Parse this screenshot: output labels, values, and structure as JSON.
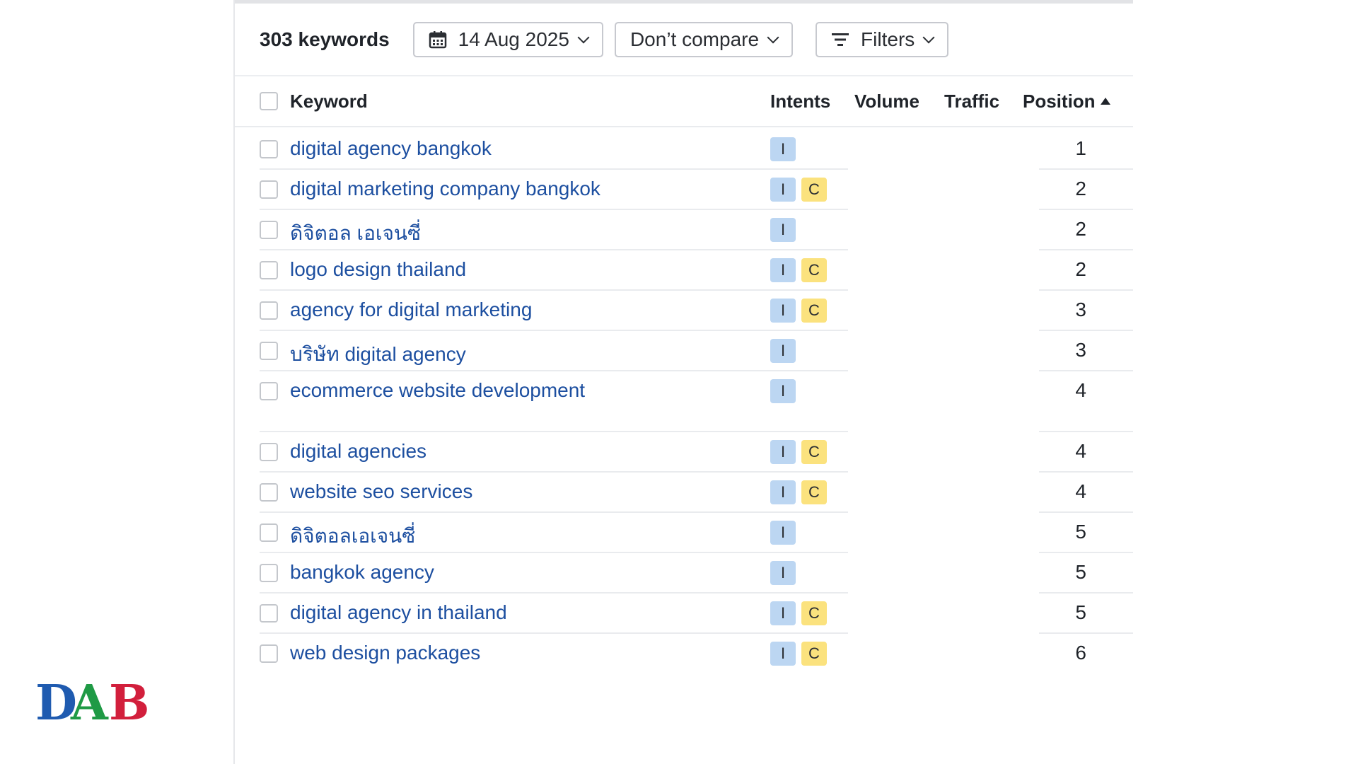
{
  "toolbar": {
    "keyword_count": "303 keywords",
    "date_label": "14 Aug 2025",
    "compare_label": "Don’t compare",
    "filters_label": "Filters"
  },
  "table": {
    "headers": {
      "keyword": "Keyword",
      "intents": "Intents",
      "volume": "Volume",
      "traffic": "Traffic",
      "position": "Position"
    },
    "sort": {
      "column": "position",
      "direction": "ascending"
    },
    "rows": [
      {
        "keyword": "digital agency bangkok",
        "intents": [
          "I"
        ],
        "position": "1"
      },
      {
        "keyword": "digital marketing company bangkok",
        "intents": [
          "I",
          "C"
        ],
        "position": "2"
      },
      {
        "keyword": "ดิจิตอล เอเจนซี่",
        "intents": [
          "I"
        ],
        "position": "2"
      },
      {
        "keyword": "logo design thailand",
        "intents": [
          "I",
          "C"
        ],
        "position": "2"
      },
      {
        "keyword": "agency for digital marketing",
        "intents": [
          "I",
          "C"
        ],
        "position": "3"
      },
      {
        "keyword": "บริษัท digital agency",
        "intents": [
          "I"
        ],
        "position": "3"
      },
      {
        "keyword": "ecommerce website development",
        "intents": [
          "I"
        ],
        "position": "4"
      },
      {
        "keyword": "digital agencies",
        "intents": [
          "I",
          "C"
        ],
        "position": "4"
      },
      {
        "keyword": "website seo services",
        "intents": [
          "I",
          "C"
        ],
        "position": "4"
      },
      {
        "keyword": "ดิจิตอลเอเจนซี่",
        "intents": [
          "I"
        ],
        "position": "5"
      },
      {
        "keyword": "bangkok agency",
        "intents": [
          "I"
        ],
        "position": "5"
      },
      {
        "keyword": "digital agency in thailand",
        "intents": [
          "I",
          "C"
        ],
        "position": "5"
      },
      {
        "keyword": "web design packages",
        "intents": [
          "I",
          "C"
        ],
        "position": "6"
      }
    ]
  },
  "logo": {
    "letters": [
      "D",
      "A",
      "B"
    ],
    "colors": [
      "#1f5bb0",
      "#1f9a45",
      "#d21f3c"
    ]
  },
  "colors": {
    "link": "#1d4fa0",
    "intent_informational": "#bcd6f2",
    "intent_commercial": "#fbe27e"
  }
}
